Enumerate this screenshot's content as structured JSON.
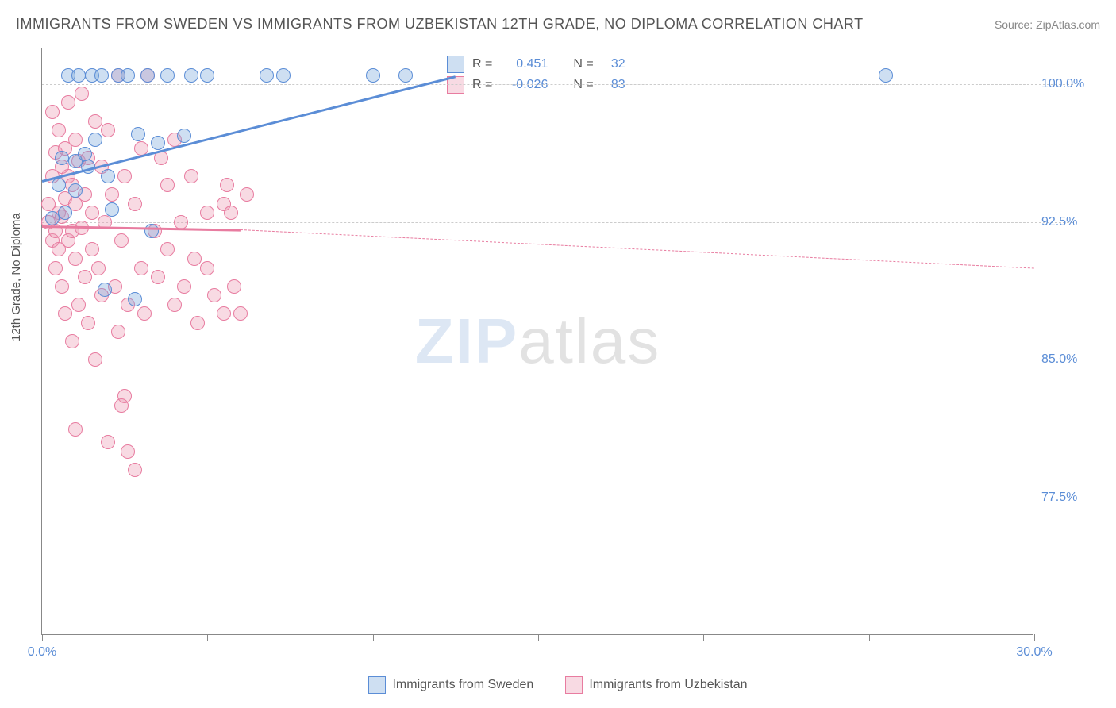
{
  "title": "IMMIGRANTS FROM SWEDEN VS IMMIGRANTS FROM UZBEKISTAN 12TH GRADE, NO DIPLOMA CORRELATION CHART",
  "source": "Source: ZipAtlas.com",
  "ylabel": "12th Grade, No Diploma",
  "chart": {
    "type": "scatter",
    "xlim": [
      0,
      30
    ],
    "ylim": [
      70,
      102
    ],
    "x_ticks": [
      0,
      2.5,
      5,
      7.5,
      10,
      12.5,
      15,
      17.5,
      20,
      22.5,
      25,
      27.5,
      30
    ],
    "x_tick_labels": {
      "0": "0.0%",
      "30": "30.0%"
    },
    "y_gridlines": [
      77.5,
      85.0,
      92.5,
      100.0
    ],
    "y_tick_labels": [
      "77.5%",
      "85.0%",
      "92.5%",
      "100.0%"
    ],
    "background_color": "#ffffff",
    "grid_color": "#cccccc",
    "axis_color": "#888888",
    "label_fontsize": 15,
    "tick_color": "#5b8dd6",
    "tick_fontsize": 16,
    "marker_radius": 9
  },
  "series": {
    "sweden": {
      "label": "Immigrants from Sweden",
      "color_fill": "rgba(116,163,219,0.35)",
      "color_stroke": "#5b8dd6",
      "r_value": "0.451",
      "n_value": "32",
      "trend": {
        "x1": 0,
        "y1": 94.8,
        "x2": 12.5,
        "y2": 100.5,
        "dash_x2": 30,
        "dash_y2": 108
      },
      "points": [
        [
          0.3,
          92.7
        ],
        [
          0.5,
          94.5
        ],
        [
          0.6,
          96.0
        ],
        [
          0.7,
          93.0
        ],
        [
          0.8,
          100.5
        ],
        [
          1.0,
          95.8
        ],
        [
          1.0,
          94.2
        ],
        [
          1.1,
          100.5
        ],
        [
          1.3,
          96.2
        ],
        [
          1.4,
          95.5
        ],
        [
          1.5,
          100.5
        ],
        [
          1.6,
          97.0
        ],
        [
          1.8,
          100.5
        ],
        [
          1.9,
          88.8
        ],
        [
          2.0,
          95.0
        ],
        [
          2.1,
          93.2
        ],
        [
          2.3,
          100.5
        ],
        [
          2.6,
          100.5
        ],
        [
          2.8,
          88.3
        ],
        [
          2.9,
          97.3
        ],
        [
          3.2,
          100.5
        ],
        [
          3.3,
          92.0
        ],
        [
          3.5,
          96.8
        ],
        [
          3.8,
          100.5
        ],
        [
          4.3,
          97.2
        ],
        [
          4.5,
          100.5
        ],
        [
          5.0,
          100.5
        ],
        [
          6.8,
          100.5
        ],
        [
          7.3,
          100.5
        ],
        [
          10.0,
          100.5
        ],
        [
          11.0,
          100.5
        ],
        [
          25.5,
          100.5
        ]
      ]
    },
    "uzbekistan": {
      "label": "Immigrants from Uzbekistan",
      "color_fill": "rgba(235,150,175,0.35)",
      "color_stroke": "#e87ca0",
      "r_value": "-0.026",
      "n_value": "83",
      "trend": {
        "x1": 0,
        "y1": 92.3,
        "x2": 6.0,
        "y2": 92.1,
        "dash_x2": 30,
        "dash_y2": 90.0
      },
      "points": [
        [
          0.2,
          92.5
        ],
        [
          0.2,
          93.5
        ],
        [
          0.3,
          95.0
        ],
        [
          0.3,
          91.5
        ],
        [
          0.3,
          98.5
        ],
        [
          0.4,
          92.0
        ],
        [
          0.4,
          96.3
        ],
        [
          0.4,
          90.0
        ],
        [
          0.5,
          93.0
        ],
        [
          0.5,
          97.5
        ],
        [
          0.5,
          91.0
        ],
        [
          0.6,
          95.5
        ],
        [
          0.6,
          92.8
        ],
        [
          0.6,
          89.0
        ],
        [
          0.7,
          96.5
        ],
        [
          0.7,
          93.8
        ],
        [
          0.7,
          87.5
        ],
        [
          0.8,
          91.5
        ],
        [
          0.8,
          95.0
        ],
        [
          0.8,
          99.0
        ],
        [
          0.9,
          92.0
        ],
        [
          0.9,
          94.5
        ],
        [
          0.9,
          86.0
        ],
        [
          1.0,
          93.5
        ],
        [
          1.0,
          97.0
        ],
        [
          1.0,
          90.5
        ],
        [
          1.1,
          88.0
        ],
        [
          1.1,
          95.8
        ],
        [
          1.2,
          92.2
        ],
        [
          1.2,
          99.5
        ],
        [
          1.3,
          89.5
        ],
        [
          1.3,
          94.0
        ],
        [
          1.4,
          87.0
        ],
        [
          1.4,
          96.0
        ],
        [
          1.5,
          91.0
        ],
        [
          1.5,
          93.0
        ],
        [
          1.6,
          98.0
        ],
        [
          1.6,
          85.0
        ],
        [
          1.7,
          90.0
        ],
        [
          1.8,
          95.5
        ],
        [
          1.8,
          88.5
        ],
        [
          1.9,
          92.5
        ],
        [
          2.0,
          97.5
        ],
        [
          2.0,
          80.5
        ],
        [
          2.1,
          94.0
        ],
        [
          2.2,
          89.0
        ],
        [
          2.3,
          100.5
        ],
        [
          2.3,
          86.5
        ],
        [
          2.4,
          91.5
        ],
        [
          2.5,
          95.0
        ],
        [
          2.5,
          83.0
        ],
        [
          2.6,
          88.0
        ],
        [
          2.8,
          93.5
        ],
        [
          2.8,
          79.0
        ],
        [
          3.0,
          96.5
        ],
        [
          3.0,
          90.0
        ],
        [
          3.1,
          87.5
        ],
        [
          3.2,
          100.5
        ],
        [
          3.4,
          92.0
        ],
        [
          3.5,
          89.5
        ],
        [
          3.6,
          96.0
        ],
        [
          3.8,
          94.5
        ],
        [
          3.8,
          91.0
        ],
        [
          4.0,
          88.0
        ],
        [
          4.0,
          97.0
        ],
        [
          4.2,
          92.5
        ],
        [
          4.3,
          89.0
        ],
        [
          4.5,
          95.0
        ],
        [
          4.6,
          90.5
        ],
        [
          4.7,
          87.0
        ],
        [
          5.0,
          93.0
        ],
        [
          5.0,
          90.0
        ],
        [
          5.2,
          88.5
        ],
        [
          5.5,
          93.5
        ],
        [
          5.5,
          87.5
        ],
        [
          5.6,
          94.5
        ],
        [
          5.7,
          93.0
        ],
        [
          5.8,
          89.0
        ],
        [
          6.0,
          87.5
        ],
        [
          6.2,
          94.0
        ],
        [
          1.0,
          81.2
        ],
        [
          2.4,
          82.5
        ],
        [
          2.6,
          80.0
        ]
      ]
    }
  },
  "legend_top": {
    "r_label": "R =",
    "n_label": "N ="
  },
  "watermark": {
    "zip": "ZIP",
    "atlas": "atlas"
  }
}
